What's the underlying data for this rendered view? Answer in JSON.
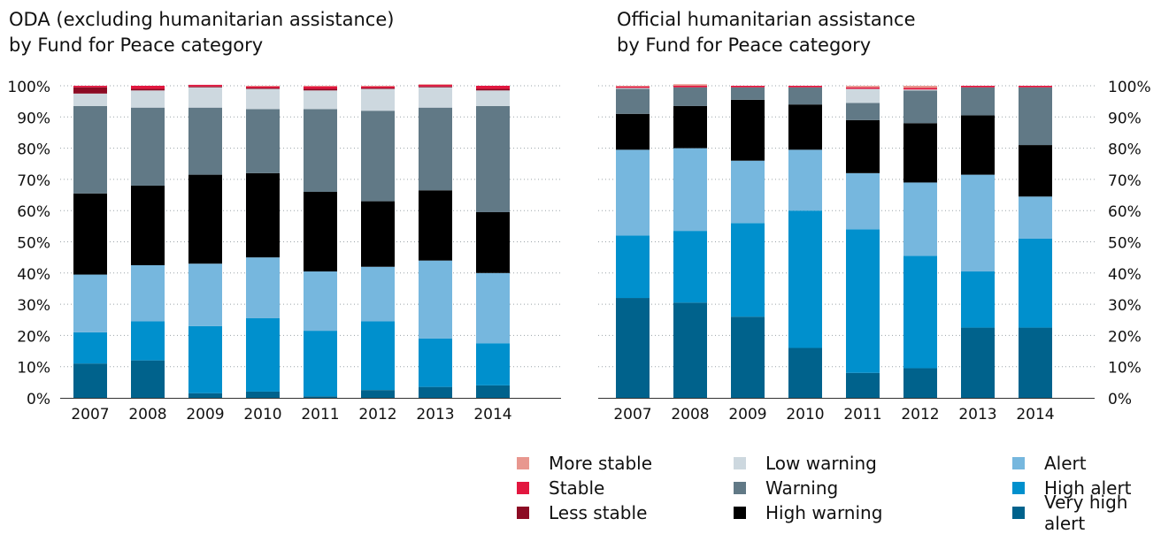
{
  "chart_data": [
    {
      "type": "bar",
      "stacked": true,
      "title": "ODA (excluding humanitarian assistance)",
      "subtitle": "by Fund for Peace category",
      "categories": [
        "2007",
        "2008",
        "2009",
        "2010",
        "2011",
        "2012",
        "2013",
        "2014"
      ],
      "y_ticks": [
        "0%",
        "10%",
        "20%",
        "30%",
        "40%",
        "50%",
        "60%",
        "70%",
        "80%",
        "90%",
        "100%"
      ],
      "ylim": [
        0,
        100
      ],
      "grid": true,
      "series": [
        {
          "name": "Very high alert",
          "values": [
            11,
            12,
            1.5,
            2,
            0.5,
            2.5,
            3.5,
            4
          ]
        },
        {
          "name": "High alert",
          "values": [
            10,
            12.5,
            21.5,
            23.5,
            21,
            22,
            15.5,
            13.5
          ]
        },
        {
          "name": "Alert",
          "values": [
            18.5,
            18,
            20,
            19.5,
            19,
            17.5,
            25,
            22.5
          ]
        },
        {
          "name": "High warning",
          "values": [
            26,
            25.5,
            28.5,
            27,
            25.5,
            21,
            22.5,
            19.5
          ]
        },
        {
          "name": "Warning",
          "values": [
            28,
            25,
            21.5,
            20.5,
            26.5,
            29,
            26.5,
            34
          ]
        },
        {
          "name": "Low warning",
          "values": [
            4,
            5.5,
            6.5,
            6.5,
            6,
            7,
            6.5,
            5
          ]
        },
        {
          "name": "Less stable",
          "values": [
            2,
            0.5,
            0.3,
            0.3,
            0.5,
            0.3,
            0.3,
            0.5
          ]
        },
        {
          "name": "Stable",
          "values": [
            0.5,
            1,
            0.5,
            0.5,
            0.8,
            0.5,
            0.5,
            1
          ]
        },
        {
          "name": "More stable",
          "values": [
            0,
            0,
            0,
            0.2,
            0.2,
            0.2,
            0.2,
            0
          ]
        }
      ]
    },
    {
      "type": "bar",
      "stacked": true,
      "title": "Official humanitarian assistance",
      "subtitle": "by Fund for Peace category",
      "categories": [
        "2007",
        "2008",
        "2009",
        "2010",
        "2011",
        "2012",
        "2013",
        "2014"
      ],
      "y_ticks": [
        "0%",
        "10%",
        "20%",
        "30%",
        "40%",
        "50%",
        "60%",
        "70%",
        "80%",
        "90%",
        "100%"
      ],
      "ylim": [
        0,
        100
      ],
      "grid": true,
      "axis_side": "right",
      "series": [
        {
          "name": "Very high alert",
          "values": [
            32,
            30.5,
            26,
            16,
            8,
            9.5,
            22.5,
            22.5
          ]
        },
        {
          "name": "High alert",
          "values": [
            20,
            23,
            30,
            44,
            46,
            36,
            18,
            28.5
          ]
        },
        {
          "name": "Alert",
          "values": [
            27.5,
            26.5,
            20,
            19.5,
            18,
            23.5,
            31,
            13.5
          ]
        },
        {
          "name": "High warning",
          "values": [
            11.5,
            13.5,
            19.5,
            14.5,
            17,
            19,
            19,
            16.5
          ]
        },
        {
          "name": "Warning",
          "values": [
            8,
            6,
            4,
            5.5,
            5.5,
            10.5,
            9,
            18.5
          ]
        },
        {
          "name": "Low warning",
          "values": [
            0.3,
            0,
            0,
            0,
            4.5,
            0.3,
            0,
            0
          ]
        },
        {
          "name": "Less stable",
          "values": [
            0,
            0,
            0,
            0,
            0,
            0,
            0,
            0
          ]
        },
        {
          "name": "Stable",
          "values": [
            0.5,
            0.5,
            0.5,
            0.5,
            0.5,
            0.5,
            0.5,
            0.5
          ]
        },
        {
          "name": "More stable",
          "values": [
            0.2,
            0.5,
            0,
            0,
            0.5,
            0.7,
            0,
            0
          ]
        }
      ]
    }
  ],
  "colors": {
    "Very high alert": "#00628c",
    "High alert": "#0090cd",
    "Alert": "#76b7de",
    "High warning": "#000000",
    "Warning": "#617986",
    "Low warning": "#cdd8df",
    "Less stable": "#8c0b24",
    "Stable": "#e2173f",
    "More stable": "#e8978f"
  },
  "legend": [
    {
      "label": "More stable",
      "color": "#e8978f"
    },
    {
      "label": "Low warning",
      "color": "#cdd8df"
    },
    {
      "label": "Alert",
      "color": "#76b7de"
    },
    {
      "label": "Stable",
      "color": "#e2173f"
    },
    {
      "label": "Warning",
      "color": "#617986"
    },
    {
      "label": "High alert",
      "color": "#0090cd"
    },
    {
      "label": "Less stable",
      "color": "#8c0b24"
    },
    {
      "label": "High warning",
      "color": "#000000"
    },
    {
      "label": "Very high alert",
      "color": "#00628c"
    }
  ]
}
